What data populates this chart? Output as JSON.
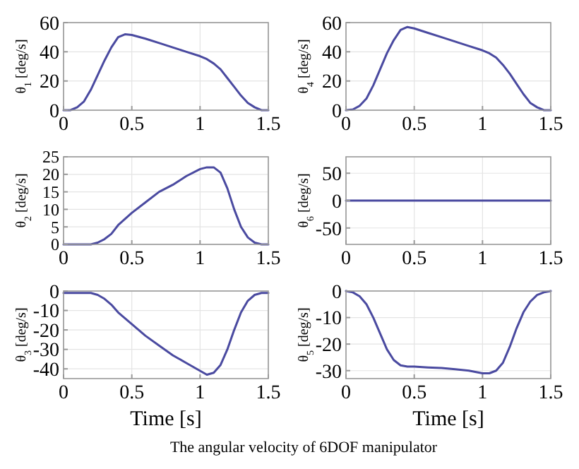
{
  "chart_data": [
    {
      "type": "line",
      "ylabel": "θ$_{1}$ [deg/s]",
      "x": [
        0,
        0.05,
        0.1,
        0.15,
        0.2,
        0.25,
        0.3,
        0.35,
        0.4,
        0.45,
        0.5,
        0.6,
        0.7,
        0.8,
        0.9,
        1.0,
        1.05,
        1.1,
        1.15,
        1.2,
        1.25,
        1.3,
        1.35,
        1.4,
        1.45,
        1.5
      ],
      "series": [
        {
          "color": "#4a4aa0",
          "values": [
            0,
            0,
            2,
            6,
            14,
            24,
            34,
            43,
            50,
            52,
            51.5,
            49,
            46,
            43,
            40,
            37,
            35,
            32,
            28,
            22,
            16,
            10,
            5,
            2,
            0,
            0
          ]
        }
      ],
      "xlim": [
        0,
        1.5
      ],
      "xticks": [
        0,
        0.5,
        1,
        1.5
      ],
      "ylim": [
        0,
        60
      ],
      "yticks": [
        0,
        20,
        40,
        60
      ],
      "grid": true
    },
    {
      "type": "line",
      "ylabel": "θ$_{4}$ [deg/s]",
      "x": [
        0,
        0.05,
        0.1,
        0.15,
        0.2,
        0.25,
        0.3,
        0.35,
        0.4,
        0.45,
        0.5,
        0.6,
        0.7,
        0.8,
        0.9,
        1.0,
        1.05,
        1.1,
        1.15,
        1.2,
        1.25,
        1.3,
        1.35,
        1.4,
        1.45,
        1.5
      ],
      "series": [
        {
          "color": "#4a4aa0",
          "values": [
            0,
            0.5,
            3,
            8,
            17,
            28,
            39,
            48,
            55,
            57,
            56,
            53,
            50,
            47,
            44,
            41,
            39,
            36,
            31,
            25,
            18,
            11,
            5,
            2,
            0,
            0
          ]
        }
      ],
      "xlim": [
        0,
        1.5
      ],
      "xticks": [
        0,
        0.5,
        1,
        1.5
      ],
      "ylim": [
        0,
        60
      ],
      "yticks": [
        0,
        20,
        40,
        60
      ],
      "grid": true
    },
    {
      "type": "line",
      "ylabel": "θ$_{2}$ [deg/s]",
      "x": [
        0,
        0.2,
        0.25,
        0.3,
        0.35,
        0.4,
        0.5,
        0.6,
        0.7,
        0.8,
        0.9,
        1.0,
        1.05,
        1.1,
        1.15,
        1.2,
        1.25,
        1.3,
        1.35,
        1.4,
        1.45,
        1.5
      ],
      "series": [
        {
          "color": "#4a4aa0",
          "values": [
            0,
            0,
            0.5,
            1.5,
            3,
            5.5,
            9,
            12,
            15,
            17,
            19.5,
            21.5,
            22,
            22,
            20.5,
            16,
            10,
            5,
            2,
            0.5,
            0,
            0
          ]
        }
      ],
      "xlim": [
        0,
        1.5
      ],
      "xticks": [
        0,
        0.5,
        1,
        1.5
      ],
      "ylim": [
        0,
        25
      ],
      "yticks": [
        0,
        5,
        10,
        15,
        20,
        25
      ],
      "grid": true
    },
    {
      "type": "line",
      "ylabel": "θ$_{6}$ [deg/s]",
      "x": [
        0,
        0.5,
        1.0,
        1.5
      ],
      "series": [
        {
          "color": "#4a4aa0",
          "values": [
            0,
            0,
            0,
            0
          ]
        }
      ],
      "xlim": [
        0,
        1.5
      ],
      "xticks": [
        0,
        0.5,
        1,
        1.5
      ],
      "ylim": [
        -80,
        80
      ],
      "yticks": [
        -50,
        0,
        50
      ],
      "grid": true
    },
    {
      "type": "line",
      "ylabel": "θ$_{3}$ [deg/s]",
      "xlabel": "Time [s]",
      "x": [
        0,
        0.2,
        0.25,
        0.3,
        0.35,
        0.4,
        0.5,
        0.6,
        0.7,
        0.8,
        0.9,
        1.0,
        1.05,
        1.1,
        1.15,
        1.2,
        1.25,
        1.3,
        1.35,
        1.4,
        1.45,
        1.5
      ],
      "series": [
        {
          "color": "#4a4aa0",
          "values": [
            -1,
            -1,
            -2,
            -4,
            -7,
            -11,
            -17,
            -23,
            -28,
            -33,
            -37,
            -41,
            -43,
            -42,
            -38,
            -30,
            -20,
            -11,
            -5,
            -2,
            -1,
            -1
          ]
        }
      ],
      "xlim": [
        0,
        1.5
      ],
      "xticks": [
        0,
        0.5,
        1,
        1.5
      ],
      "ylim": [
        -45,
        0
      ],
      "yticks": [
        -40,
        -30,
        -20,
        -10,
        0
      ],
      "grid": true
    },
    {
      "type": "line",
      "ylabel": "θ$_{5}$ [deg/s]",
      "xlabel": "Time [s]",
      "x": [
        0,
        0.05,
        0.1,
        0.15,
        0.2,
        0.25,
        0.3,
        0.35,
        0.4,
        0.45,
        0.5,
        0.6,
        0.7,
        0.8,
        0.9,
        1.0,
        1.05,
        1.1,
        1.15,
        1.2,
        1.25,
        1.3,
        1.35,
        1.4,
        1.45,
        1.5
      ],
      "series": [
        {
          "color": "#4a4aa0",
          "values": [
            0,
            -0.5,
            -2,
            -5,
            -10,
            -16,
            -22,
            -26,
            -28,
            -28.5,
            -28.5,
            -28.8,
            -29,
            -29.5,
            -30,
            -31,
            -31,
            -30,
            -27,
            -21,
            -14,
            -8,
            -4,
            -1.5,
            -0.5,
            0
          ]
        }
      ],
      "xlim": [
        0,
        1.5
      ],
      "xticks": [
        0,
        0.5,
        1,
        1.5
      ],
      "ylim": [
        -33,
        0
      ],
      "yticks": [
        -30,
        -20,
        -10,
        0
      ],
      "grid": true,
      "annotations": [
        "The angular velocity of 6DOF manipulator"
      ]
    }
  ]
}
